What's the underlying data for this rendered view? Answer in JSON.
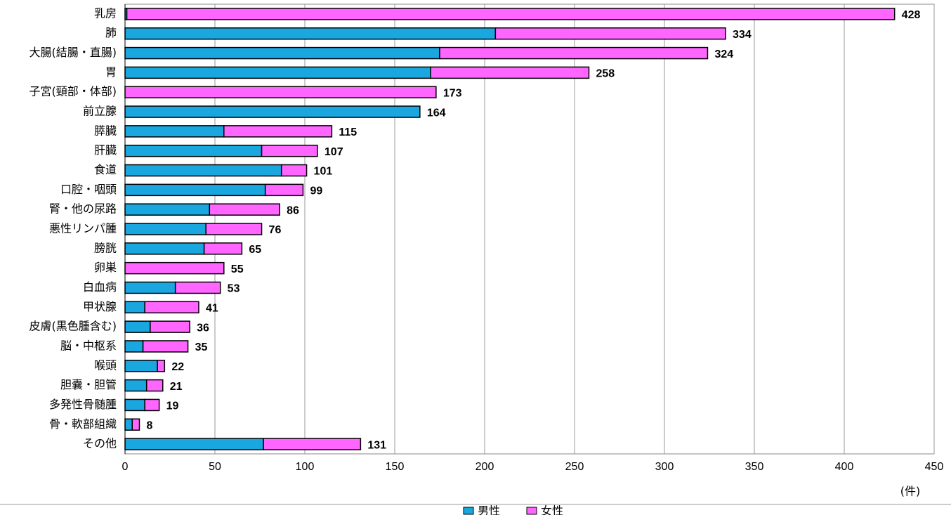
{
  "chart_data": {
    "type": "stacked-hbar",
    "categories": [
      "乳房",
      "肺",
      "大腸(結腸・直腸)",
      "胃",
      "子宮(頸部・体部)",
      "前立腺",
      "膵臓",
      "肝臓",
      "食道",
      "口腔・咽頭",
      "腎・他の尿路",
      "悪性リンパ腫",
      "膀胱",
      "卵巣",
      "白血病",
      "甲状腺",
      "皮膚(黒色腫含む)",
      "脳・中枢系",
      "喉頭",
      "胆嚢・胆管",
      "多発性骨髄腫",
      "骨・軟部組織",
      "その他"
    ],
    "series": [
      {
        "name": "男性",
        "color": "#1aa7e0",
        "values": [
          1,
          206,
          175,
          170,
          0,
          164,
          55,
          76,
          87,
          78,
          47,
          45,
          44,
          0,
          28,
          11,
          14,
          10,
          18,
          12,
          11,
          4,
          77
        ]
      },
      {
        "name": "女性",
        "color": "#ff66ff",
        "values": [
          427,
          128,
          149,
          88,
          173,
          0,
          60,
          31,
          14,
          21,
          39,
          31,
          21,
          55,
          25,
          30,
          22,
          25,
          4,
          9,
          8,
          4,
          54
        ]
      }
    ],
    "totals": [
      428,
      334,
      324,
      258,
      173,
      164,
      115,
      107,
      101,
      99,
      86,
      76,
      65,
      55,
      53,
      41,
      36,
      35,
      22,
      21,
      19,
      8,
      131
    ],
    "xlim": [
      0,
      450
    ],
    "xticks": [
      0,
      50,
      100,
      150,
      200,
      250,
      300,
      350,
      400,
      450
    ],
    "x_unit": "(件)",
    "grid": true
  }
}
